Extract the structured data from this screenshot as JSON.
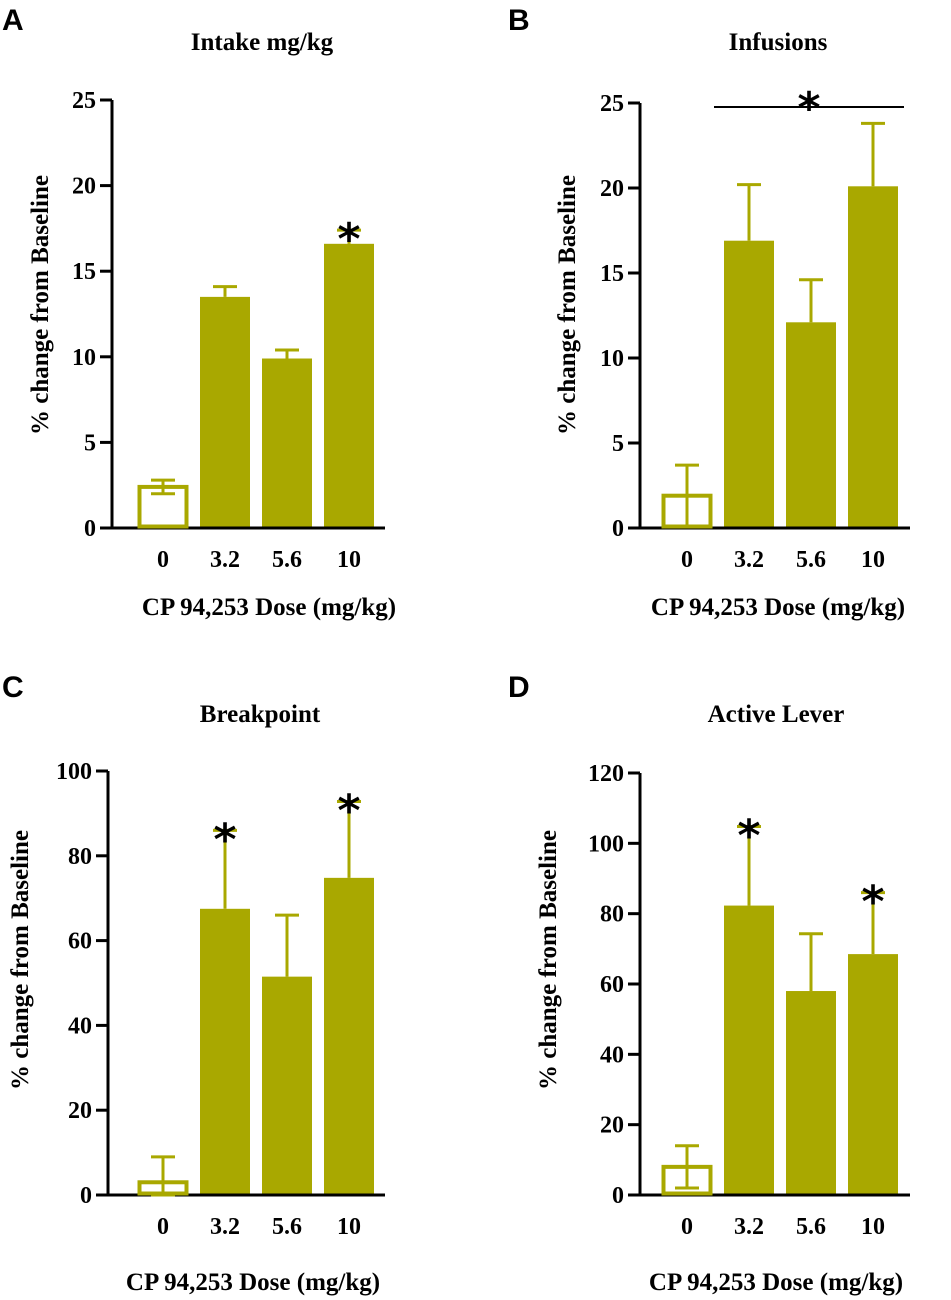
{
  "colors": {
    "bar": "#a9a800",
    "axis": "#000000",
    "open_fill": "#ffffff"
  },
  "chart_data": [
    {
      "panel": "A",
      "type": "bar",
      "title": "Intake mg/kg",
      "xlabel": "CP 94,253 Dose (mg/kg)",
      "ylabel": "% change from Baseline",
      "categories": [
        "0",
        "3.2",
        "5.6",
        "10"
      ],
      "values": [
        2.4,
        13.5,
        9.9,
        16.6
      ],
      "errors": [
        0.4,
        0.6,
        0.5,
        0.8
      ],
      "open_bars": [
        true,
        false,
        false,
        false
      ],
      "significance": [
        false,
        false,
        false,
        true
      ],
      "bracket": false,
      "ylim": [
        0,
        25
      ],
      "yticks": [
        "0",
        "5",
        "10",
        "15",
        "20",
        "25"
      ],
      "ytick_values": [
        0,
        5,
        10,
        15,
        20,
        25
      ],
      "star_symbol": "*"
    },
    {
      "panel": "B",
      "type": "bar",
      "title": "Infusions",
      "xlabel": "CP 94,253 Dose (mg/kg)",
      "ylabel": "% change from Baseline",
      "categories": [
        "0",
        "3.2",
        "5.6",
        "10"
      ],
      "values": [
        1.9,
        16.9,
        12.1,
        20.1
      ],
      "errors": [
        1.8,
        3.3,
        2.5,
        3.7
      ],
      "open_bars": [
        true,
        false,
        false,
        false
      ],
      "significance": [
        false,
        false,
        false,
        false
      ],
      "bracket": true,
      "ylim": [
        0,
        25
      ],
      "yticks": [
        "0",
        "5",
        "10",
        "15",
        "20",
        "25"
      ],
      "ytick_values": [
        0,
        5,
        10,
        15,
        20,
        25
      ],
      "star_symbol": "*"
    },
    {
      "panel": "C",
      "type": "bar",
      "title": "Breakpoint",
      "xlabel": "CP 94,253 Dose (mg/kg)",
      "ylabel": "% change from Baseline",
      "categories": [
        "0",
        "3.2",
        "5.6",
        "10"
      ],
      "values": [
        3,
        67.5,
        51.5,
        74.8
      ],
      "errors": [
        6,
        18.5,
        14.5,
        18
      ],
      "open_bars": [
        true,
        false,
        false,
        false
      ],
      "significance": [
        false,
        true,
        false,
        true
      ],
      "bracket": false,
      "ylim": [
        0,
        100
      ],
      "yticks": [
        "0",
        "20",
        "40",
        "60",
        "80",
        "100"
      ],
      "ytick_values": [
        0,
        20,
        40,
        60,
        80,
        100
      ],
      "star_symbol": "*"
    },
    {
      "panel": "D",
      "type": "bar",
      "title": "Active Lever",
      "xlabel": "CP 94,253 Dose (mg/kg)",
      "ylabel": "% change from Baseline",
      "categories": [
        "0",
        "3.2",
        "5.6",
        "10"
      ],
      "values": [
        8,
        82.3,
        58,
        68.5
      ],
      "errors": [
        6,
        22.5,
        16.3,
        17.5
      ],
      "open_bars": [
        true,
        false,
        false,
        false
      ],
      "significance": [
        false,
        true,
        false,
        true
      ],
      "bracket": false,
      "ylim": [
        0,
        120
      ],
      "yticks": [
        "0",
        "20",
        "40",
        "60",
        "80",
        "100",
        "120"
      ],
      "ytick_values": [
        0,
        20,
        40,
        60,
        80,
        100,
        120
      ],
      "star_symbol": "*"
    }
  ]
}
